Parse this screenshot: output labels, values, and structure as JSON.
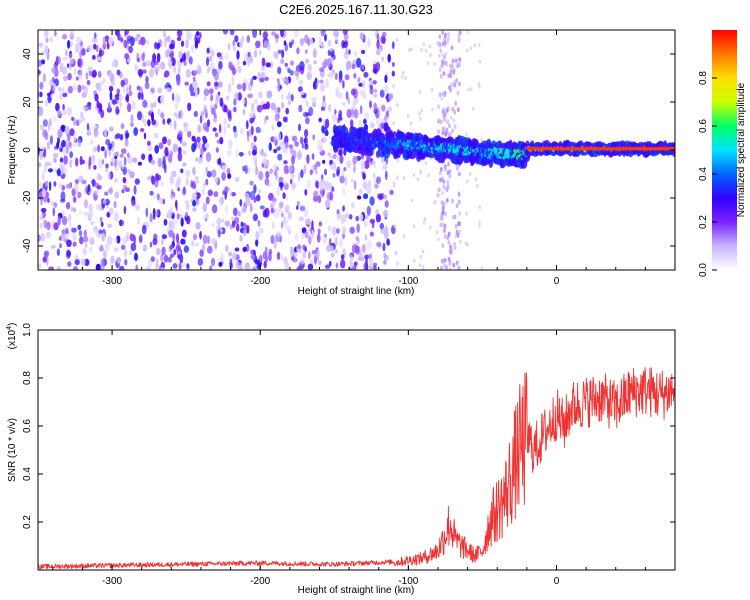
{
  "title": "C2E6.2025.167.11.30.G23",
  "chart_data": [
    {
      "type": "heatmap",
      "xlabel": "Height of straight line (km)",
      "ylabel": "Frequency (Hz)",
      "xlim": [
        -350,
        80
      ],
      "ylim": [
        -50,
        50
      ],
      "xticks": [
        -300,
        -200,
        -100,
        0
      ],
      "yticks": [
        -40,
        -20,
        0,
        20,
        40
      ],
      "grid": false,
      "colorbar": {
        "label": "Normalized spectral amplitude",
        "range": [
          0,
          1
        ],
        "ticks": [
          "0.0",
          "0.2",
          "0.4",
          "0.6",
          "0.8"
        ],
        "colors": [
          "#ffffff",
          "#c8b4ff",
          "#7a22ff",
          "#3300ff",
          "#0066ff",
          "#00e5ff",
          "#00ff66",
          "#ccff00",
          "#ffdd00",
          "#ff7700",
          "#ff0000"
        ]
      },
      "features": {
        "noise_x_range": [
          -350,
          -110
        ],
        "noise_amplitude_range": [
          0.05,
          0.35
        ],
        "streak_x_range": [
          -80,
          -65
        ],
        "line_segments": [
          {
            "x": [
              -150,
              -100
            ],
            "freq": [
              5,
              2
            ],
            "amplitude": [
              0.3,
              0.45
            ]
          },
          {
            "x": [
              -100,
              -50
            ],
            "freq": [
              2,
              -1
            ],
            "amplitude": [
              0.45,
              0.5
            ]
          },
          {
            "x": [
              -50,
              -20
            ],
            "freq": [
              -1,
              -2
            ],
            "amplitude": [
              0.45,
              0.6
            ]
          },
          {
            "x": [
              -20,
              80
            ],
            "freq": [
              0.5,
              0.5
            ],
            "amplitude": [
              0.8,
              1.0
            ]
          }
        ]
      }
    },
    {
      "type": "line",
      "xlabel": "Height of straight line (km)",
      "ylabel": "SNR (10 * v/v)",
      "multiplier": "(x10",
      "multiplier_exp": "4",
      "xlim": [
        -350,
        80
      ],
      "ylim": [
        0,
        1.0
      ],
      "xticks": [
        -300,
        -200,
        -100,
        0
      ],
      "yticks": [
        "0.2",
        "0.4",
        "0.6",
        "0.8",
        "1.0"
      ],
      "color": "#ee3333",
      "series": [
        {
          "x": [
            -350,
            -300,
            -250,
            -200,
            -150,
            -110,
            -100,
            -90,
            -80,
            -75,
            -72,
            -68,
            -62,
            -55,
            -50,
            -45,
            -40,
            -35,
            -30,
            -25,
            -20,
            -15,
            -10,
            -5,
            0,
            5,
            10,
            20,
            30,
            40,
            50,
            60,
            70,
            80
          ],
          "values": [
            0.01,
            0.015,
            0.02,
            0.025,
            0.02,
            0.03,
            0.04,
            0.05,
            0.08,
            0.15,
            0.2,
            0.12,
            0.09,
            0.06,
            0.08,
            0.2,
            0.25,
            0.3,
            0.4,
            0.5,
            0.55,
            0.5,
            0.55,
            0.6,
            0.65,
            0.6,
            0.68,
            0.7,
            0.72,
            0.68,
            0.74,
            0.75,
            0.73,
            0.75
          ]
        }
      ]
    }
  ]
}
